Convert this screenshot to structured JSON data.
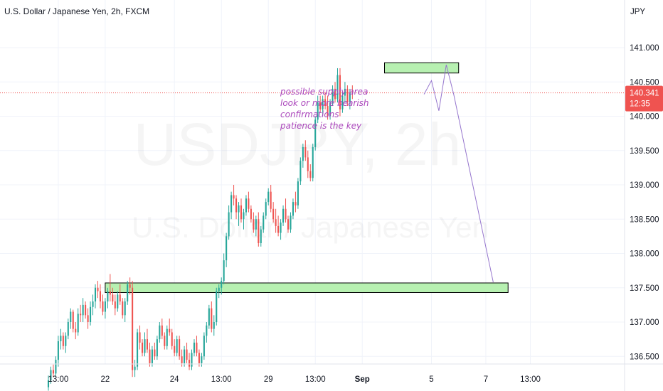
{
  "chart_data": {
    "type": "candlestick",
    "title": "U.S. Dollar / Japanese Yen, 2h, FXCM",
    "watermark": {
      "symbol": "USDJPY, 2h",
      "name": "U.S. Dollar / Japanese Yen"
    },
    "y_axis": {
      "unit": "JPY",
      "range": [
        136.15,
        141.55
      ],
      "ticks": [
        "141.000",
        "140.500",
        "140.000",
        "139.500",
        "139.000",
        "138.500",
        "138.000",
        "137.500",
        "137.000",
        "136.500"
      ],
      "tick_values": [
        141.0,
        140.5,
        140.0,
        139.5,
        139.0,
        138.5,
        138.0,
        137.5,
        137.0,
        136.5
      ]
    },
    "x_axis": {
      "range": [
        0,
        175
      ],
      "ticks": [
        {
          "label": "13:00",
          "bar": 4,
          "bold": false
        },
        {
          "label": "22",
          "bar": 23,
          "bold": false
        },
        {
          "label": "24",
          "bar": 51,
          "bold": false
        },
        {
          "label": "13:00",
          "bar": 70,
          "bold": false
        },
        {
          "label": "29",
          "bar": 89,
          "bold": false
        },
        {
          "label": "13:00",
          "bar": 108,
          "bold": false
        },
        {
          "label": "Sep",
          "bar": 127,
          "bold": true
        },
        {
          "label": "5",
          "bar": 155,
          "bold": false
        },
        {
          "label": "7",
          "bar": 177,
          "bold": false
        },
        {
          "label": "13:00",
          "bar": 195,
          "bold": false
        }
      ]
    },
    "last_price": {
      "value": "140.341",
      "countdown": "12:35",
      "price": 140.341
    },
    "colors": {
      "up": "#26a69a",
      "down": "#ef5350",
      "zone_fill": "#b7f0b1",
      "zone_border": "#000000",
      "projection": "#9575cd",
      "note": "#ab47bc",
      "price_line": "#ef5350"
    },
    "annotations": {
      "note_lines": [
        "possible supply area",
        "look or more bearish",
        "confirmations",
        "patience is the key"
      ],
      "supply_zone": {
        "x": [
          136,
          166
        ],
        "y": [
          140.63,
          140.78
        ]
      },
      "demand_zone": {
        "x": [
          23,
          186
        ],
        "y": [
          137.43,
          137.57
        ]
      },
      "projection": [
        [
          152,
          140.32
        ],
        [
          155,
          140.52
        ],
        [
          158,
          140.08
        ],
        [
          161,
          140.75
        ],
        [
          164,
          140.32
        ],
        [
          180,
          137.58
        ]
      ]
    },
    "candles": [
      [
        136.05,
        136.22,
        136.0,
        136.15
      ],
      [
        136.15,
        136.35,
        136.1,
        136.3
      ],
      [
        136.3,
        136.38,
        136.2,
        136.25
      ],
      [
        136.25,
        136.5,
        136.2,
        136.45
      ],
      [
        136.45,
        136.8,
        136.35,
        136.72
      ],
      [
        136.72,
        136.9,
        136.6,
        136.8
      ],
      [
        136.8,
        136.85,
        136.6,
        136.65
      ],
      [
        136.65,
        136.85,
        136.55,
        136.8
      ],
      [
        136.8,
        137.05,
        136.75,
        137.0
      ],
      [
        137.0,
        137.2,
        136.9,
        137.15
      ],
      [
        137.15,
        137.18,
        136.85,
        136.9
      ],
      [
        136.9,
        137.0,
        136.75,
        136.85
      ],
      [
        136.85,
        137.2,
        136.8,
        137.12
      ],
      [
        137.12,
        137.25,
        137.0,
        137.1
      ],
      [
        137.1,
        137.35,
        137.0,
        137.25
      ],
      [
        137.25,
        137.3,
        137.05,
        137.1
      ],
      [
        137.1,
        137.2,
        136.9,
        137.0
      ],
      [
        137.0,
        137.3,
        136.95,
        137.22
      ],
      [
        137.22,
        137.4,
        137.1,
        137.3
      ],
      [
        137.3,
        137.55,
        137.2,
        137.5
      ],
      [
        137.5,
        137.6,
        137.35,
        137.45
      ],
      [
        137.45,
        137.55,
        137.2,
        137.3
      ],
      [
        137.3,
        137.4,
        137.1,
        137.15
      ],
      [
        137.15,
        137.35,
        137.05,
        137.3
      ],
      [
        137.3,
        137.5,
        137.2,
        137.45
      ],
      [
        137.45,
        137.7,
        137.3,
        137.4
      ],
      [
        137.4,
        137.5,
        137.25,
        137.3
      ],
      [
        137.3,
        137.4,
        137.1,
        137.2
      ],
      [
        137.2,
        137.45,
        137.15,
        137.4
      ],
      [
        137.4,
        137.55,
        137.25,
        137.3
      ],
      [
        137.3,
        137.35,
        137.05,
        137.1
      ],
      [
        137.1,
        137.35,
        137.0,
        137.3
      ],
      [
        137.3,
        137.6,
        137.25,
        137.55
      ],
      [
        137.55,
        137.65,
        137.4,
        137.5
      ],
      [
        137.5,
        137.6,
        136.2,
        136.3
      ],
      [
        136.3,
        136.45,
        136.2,
        136.35
      ],
      [
        136.35,
        136.9,
        136.3,
        136.85
      ],
      [
        136.85,
        136.95,
        136.6,
        136.7
      ],
      [
        136.7,
        136.75,
        136.5,
        136.55
      ],
      [
        136.55,
        136.85,
        136.5,
        136.75
      ],
      [
        136.75,
        136.9,
        136.55,
        136.6
      ],
      [
        136.6,
        136.7,
        136.35,
        136.4
      ],
      [
        136.4,
        136.65,
        136.35,
        136.6
      ],
      [
        136.6,
        136.7,
        136.45,
        136.5
      ],
      [
        136.5,
        136.8,
        136.45,
        136.75
      ],
      [
        136.75,
        137.0,
        136.7,
        136.95
      ],
      [
        136.95,
        137.05,
        136.75,
        136.8
      ],
      [
        136.8,
        136.85,
        136.6,
        136.65
      ],
      [
        136.65,
        136.95,
        136.6,
        136.9
      ],
      [
        136.9,
        137.05,
        136.8,
        136.85
      ],
      [
        136.85,
        136.9,
        136.6,
        136.65
      ],
      [
        136.65,
        136.75,
        136.5,
        136.55
      ],
      [
        136.55,
        136.8,
        136.5,
        136.75
      ],
      [
        136.75,
        136.8,
        136.45,
        136.5
      ],
      [
        136.5,
        136.6,
        136.35,
        136.4
      ],
      [
        136.4,
        136.65,
        136.35,
        136.6
      ],
      [
        136.6,
        136.7,
        136.4,
        136.45
      ],
      [
        136.45,
        136.55,
        136.3,
        136.35
      ],
      [
        136.35,
        136.6,
        136.3,
        136.55
      ],
      [
        136.55,
        136.75,
        136.5,
        136.7
      ],
      [
        136.7,
        136.8,
        136.5,
        136.55
      ],
      [
        136.55,
        136.6,
        136.35,
        136.4
      ],
      [
        136.4,
        136.55,
        136.35,
        136.5
      ],
      [
        136.5,
        136.85,
        136.45,
        136.8
      ],
      [
        136.8,
        137.0,
        136.7,
        136.95
      ],
      [
        136.95,
        137.25,
        136.9,
        137.2
      ],
      [
        137.2,
        137.3,
        136.85,
        136.9
      ],
      [
        136.9,
        137.1,
        136.8,
        137.0
      ],
      [
        137.0,
        137.5,
        136.95,
        137.45
      ],
      [
        137.45,
        137.55,
        137.35,
        137.5
      ],
      [
        137.5,
        137.65,
        137.4,
        137.6
      ],
      [
        137.6,
        138.0,
        137.55,
        137.9
      ],
      [
        137.9,
        138.3,
        137.8,
        138.25
      ],
      [
        138.25,
        138.7,
        138.2,
        138.6
      ],
      [
        138.6,
        138.9,
        138.5,
        138.85
      ],
      [
        138.85,
        139.0,
        138.7,
        138.8
      ],
      [
        138.8,
        138.85,
        138.5,
        138.6
      ],
      [
        138.6,
        138.75,
        138.4,
        138.7
      ],
      [
        138.7,
        138.8,
        138.45,
        138.5
      ],
      [
        138.5,
        138.65,
        138.35,
        138.6
      ],
      [
        138.6,
        138.85,
        138.55,
        138.8
      ],
      [
        138.8,
        138.9,
        138.6,
        138.65
      ],
      [
        138.65,
        138.7,
        138.45,
        138.5
      ],
      [
        138.5,
        138.6,
        138.3,
        138.35
      ],
      [
        138.35,
        138.55,
        138.25,
        138.5
      ],
      [
        138.5,
        138.6,
        138.1,
        138.15
      ],
      [
        138.15,
        138.4,
        138.1,
        138.35
      ],
      [
        138.35,
        138.6,
        138.3,
        138.55
      ],
      [
        138.55,
        138.8,
        138.5,
        138.75
      ],
      [
        138.75,
        138.95,
        138.7,
        138.9
      ],
      [
        138.9,
        139.0,
        138.6,
        138.65
      ],
      [
        138.65,
        138.75,
        138.45,
        138.5
      ],
      [
        138.5,
        138.65,
        138.3,
        138.4
      ],
      [
        138.4,
        138.55,
        138.25,
        138.3
      ],
      [
        138.3,
        138.5,
        138.2,
        138.45
      ],
      [
        138.45,
        138.7,
        138.4,
        138.65
      ],
      [
        138.65,
        138.8,
        138.45,
        138.5
      ],
      [
        138.5,
        138.55,
        138.3,
        138.35
      ],
      [
        138.35,
        138.6,
        138.3,
        138.55
      ],
      [
        138.55,
        138.8,
        138.5,
        138.75
      ],
      [
        138.75,
        138.9,
        138.6,
        138.7
      ],
      [
        138.7,
        139.1,
        138.65,
        139.05
      ],
      [
        139.05,
        139.4,
        139.0,
        139.35
      ],
      [
        139.35,
        139.6,
        139.25,
        139.55
      ],
      [
        139.55,
        139.65,
        139.35,
        139.4
      ],
      [
        139.4,
        139.5,
        139.1,
        139.2
      ],
      [
        139.2,
        139.3,
        139.05,
        139.1
      ],
      [
        139.1,
        139.6,
        139.05,
        139.55
      ],
      [
        139.55,
        140.0,
        139.5,
        139.95
      ],
      [
        139.95,
        140.3,
        139.9,
        140.2
      ],
      [
        140.2,
        140.3,
        140.05,
        140.1
      ],
      [
        140.1,
        140.3,
        140.0,
        140.25
      ],
      [
        140.25,
        140.35,
        140.1,
        140.15
      ],
      [
        140.15,
        140.3,
        139.95,
        140.0
      ],
      [
        140.0,
        140.25,
        139.95,
        140.2
      ],
      [
        140.2,
        140.45,
        140.15,
        140.4
      ],
      [
        140.4,
        140.5,
        140.2,
        140.25
      ],
      [
        140.25,
        140.7,
        140.2,
        140.6
      ],
      [
        140.6,
        140.7,
        140.0,
        140.1
      ],
      [
        140.1,
        140.35,
        140.05,
        140.3
      ],
      [
        140.3,
        140.5,
        140.2,
        140.4
      ],
      [
        140.4,
        140.45,
        140.15,
        140.2
      ],
      [
        140.2,
        140.4,
        140.1,
        140.35
      ],
      [
        140.35,
        140.45,
        140.25,
        140.34
      ]
    ]
  }
}
